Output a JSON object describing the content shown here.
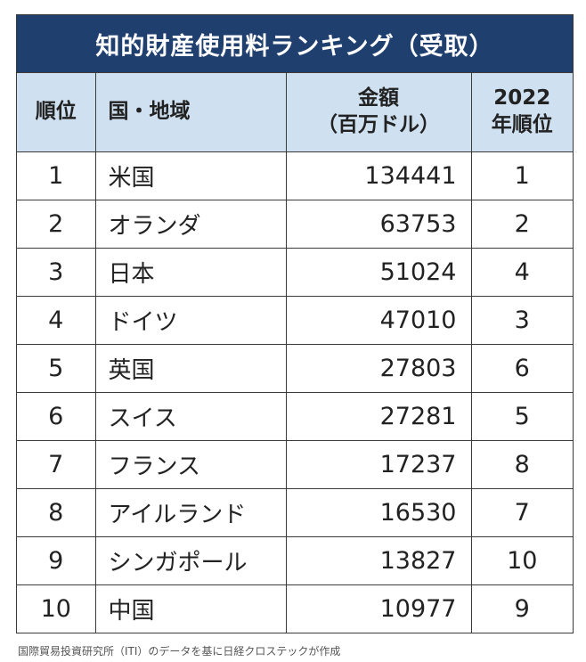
{
  "title": "知的財産使用料ランキング（受取）",
  "headers": {
    "rank": "順位",
    "country": "国・地域",
    "amount_line1": "金額",
    "amount_line2": "（百万ドル）",
    "prev_line1": "2022",
    "prev_line2": "年順位"
  },
  "rows": [
    {
      "rank": "1",
      "country": "米国",
      "amount": "134441",
      "prev": "1"
    },
    {
      "rank": "2",
      "country": "オランダ",
      "amount": "63753",
      "prev": "2"
    },
    {
      "rank": "3",
      "country": "日本",
      "amount": "51024",
      "prev": "4"
    },
    {
      "rank": "4",
      "country": "ドイツ",
      "amount": "47010",
      "prev": "3"
    },
    {
      "rank": "5",
      "country": "英国",
      "amount": "27803",
      "prev": "6"
    },
    {
      "rank": "6",
      "country": "スイス",
      "amount": "27281",
      "prev": "5"
    },
    {
      "rank": "7",
      "country": "フランス",
      "amount": "17237",
      "prev": "8"
    },
    {
      "rank": "8",
      "country": "アイルランド",
      "amount": "16530",
      "prev": "7"
    },
    {
      "rank": "9",
      "country": "シンガポール",
      "amount": "13827",
      "prev": "10"
    },
    {
      "rank": "10",
      "country": "中国",
      "amount": "10977",
      "prev": "9"
    }
  ],
  "source": "国際貿易投資研究所（ITI）のデータを基に日経クロステックが作成",
  "colors": {
    "title_bg": "#1f3f6f",
    "header_bg": "#cfe0f0",
    "border": "#3a3a3a"
  }
}
